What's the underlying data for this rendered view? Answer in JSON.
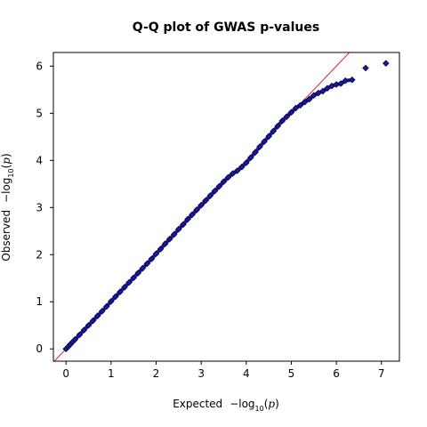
{
  "chart_data": {
    "type": "scatter",
    "title": "Q-Q plot of GWAS p-values",
    "xlabel": {
      "prefix": "Expected",
      "minus": "−log",
      "sub": "10",
      "open": "(",
      "var": "p",
      "close": ")"
    },
    "ylabel": {
      "prefix": "Observed",
      "minus": "−log",
      "sub": "10",
      "open": "(",
      "var": "p",
      "close": ")"
    },
    "xlim": [
      -0.28,
      7.4
    ],
    "ylim": [
      -0.26,
      6.29
    ],
    "xticks": [
      0,
      1,
      2,
      3,
      4,
      5,
      6,
      7
    ],
    "yticks": [
      0,
      1,
      2,
      3,
      4,
      5,
      6
    ],
    "grid": false,
    "reference_line": {
      "slope": 1,
      "intercept": 0,
      "color": "#e8202a"
    },
    "series": [
      {
        "marker_color": "#1a1a9a",
        "marker_edge": "#000040",
        "points": [
          [
            0,
            0
          ],
          [
            0.05,
            0.05
          ],
          [
            0.1,
            0.1
          ],
          [
            0.15,
            0.15
          ],
          [
            0.2,
            0.2
          ],
          [
            0.3,
            0.3
          ],
          [
            0.4,
            0.4
          ],
          [
            0.5,
            0.5
          ],
          [
            0.6,
            0.6
          ],
          [
            0.7,
            0.7
          ],
          [
            0.8,
            0.8
          ],
          [
            0.9,
            0.9
          ],
          [
            1.0,
            1.01
          ],
          [
            1.1,
            1.11
          ],
          [
            1.2,
            1.21
          ],
          [
            1.3,
            1.31
          ],
          [
            1.4,
            1.41
          ],
          [
            1.5,
            1.51
          ],
          [
            1.6,
            1.61
          ],
          [
            1.7,
            1.71
          ],
          [
            1.8,
            1.81
          ],
          [
            1.9,
            1.91
          ],
          [
            2.0,
            2.02
          ],
          [
            2.1,
            2.12
          ],
          [
            2.2,
            2.23
          ],
          [
            2.3,
            2.33
          ],
          [
            2.4,
            2.43
          ],
          [
            2.5,
            2.54
          ],
          [
            2.6,
            2.64
          ],
          [
            2.7,
            2.75
          ],
          [
            2.8,
            2.85
          ],
          [
            2.9,
            2.95
          ],
          [
            3.0,
            3.05
          ],
          [
            3.1,
            3.15
          ],
          [
            3.2,
            3.25
          ],
          [
            3.3,
            3.35
          ],
          [
            3.4,
            3.45
          ],
          [
            3.5,
            3.55
          ],
          [
            3.6,
            3.64
          ],
          [
            3.7,
            3.72
          ],
          [
            3.8,
            3.78
          ],
          [
            3.9,
            3.86
          ],
          [
            4.0,
            3.95
          ],
          [
            4.1,
            4.06
          ],
          [
            4.2,
            4.17
          ],
          [
            4.3,
            4.29
          ],
          [
            4.4,
            4.4
          ],
          [
            4.5,
            4.51
          ],
          [
            4.6,
            4.62
          ],
          [
            4.7,
            4.73
          ],
          [
            4.8,
            4.84
          ],
          [
            4.9,
            4.93
          ],
          [
            5.0,
            5.02
          ],
          [
            5.1,
            5.11
          ],
          [
            5.2,
            5.17
          ],
          [
            5.3,
            5.24
          ],
          [
            5.4,
            5.3
          ],
          [
            5.5,
            5.38
          ],
          [
            5.6,
            5.43
          ],
          [
            5.7,
            5.47
          ],
          [
            5.8,
            5.53
          ],
          [
            5.9,
            5.58
          ],
          [
            6.0,
            5.61
          ],
          [
            6.1,
            5.63
          ],
          [
            6.2,
            5.69
          ],
          [
            6.35,
            5.71
          ],
          [
            6.65,
            5.96
          ],
          [
            7.1,
            6.06
          ]
        ]
      }
    ]
  }
}
